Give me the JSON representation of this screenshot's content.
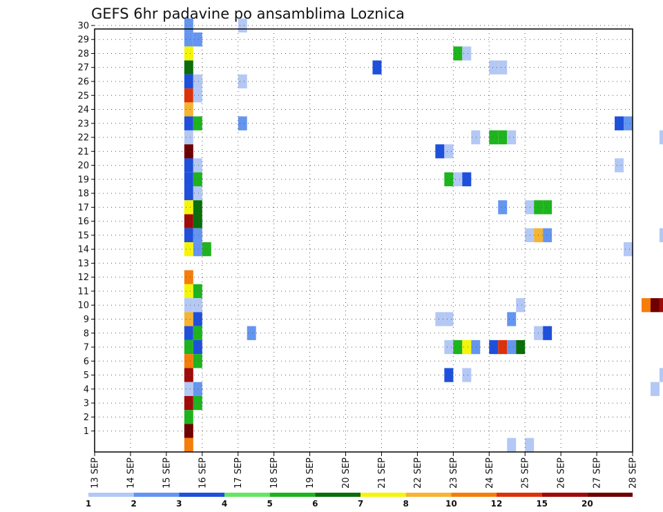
{
  "chart_data": {
    "type": "heatmap",
    "title": "GEFS 6hr padavine po ansamblima Loznica",
    "x_ticks": [
      "13 SEP",
      "14 SEP",
      "15 SEP",
      "16 SEP",
      "17 SEP",
      "18 SEP",
      "19 SEP",
      "20 SEP",
      "21 SEP",
      "22 SEP",
      "23 SEP",
      "24 SEP",
      "25 SEP",
      "26 SEP",
      "27 SEP",
      "28 SEP"
    ],
    "y_ticks": [
      "1",
      "2",
      "3",
      "4",
      "5",
      "6",
      "7",
      "8",
      "9",
      "10",
      "11",
      "12",
      "13",
      "14",
      "15",
      "16",
      "17",
      "18",
      "19",
      "20",
      "21",
      "22",
      "23",
      "24",
      "25",
      "26",
      "27",
      "28",
      "29",
      "30"
    ],
    "grid": true,
    "colorbar": {
      "labels": [
        "1",
        "2",
        "3",
        "4",
        "5",
        "6",
        "7",
        "8",
        "10",
        "12",
        "15",
        "20"
      ],
      "colors": [
        "#b4c8f5",
        "#6496f0",
        "#1e50dc",
        "#64e664",
        "#1eb41e",
        "#0a6e0a",
        "#f5f50a",
        "#f5b432",
        "#f57d0a",
        "#dc320a",
        "#a00a0a",
        "#6e0000"
      ]
    },
    "cells": [
      {
        "m": 30,
        "t": 15.5,
        "v": 2
      },
      {
        "m": 30,
        "t": 17.0,
        "v": 1
      },
      {
        "m": 29,
        "t": 15.5,
        "v": 2
      },
      {
        "m": 29,
        "t": 15.75,
        "v": 2
      },
      {
        "m": 28,
        "t": 15.5,
        "v": 7
      },
      {
        "m": 28,
        "t": 23.0,
        "v": 5
      },
      {
        "m": 28,
        "t": 23.25,
        "v": 1
      },
      {
        "m": 27,
        "t": 15.5,
        "v": 6
      },
      {
        "m": 27,
        "t": 20.75,
        "v": 3
      },
      {
        "m": 27,
        "t": 24.0,
        "v": 1
      },
      {
        "m": 27,
        "t": 24.25,
        "v": 1
      },
      {
        "m": 26,
        "t": 15.5,
        "v": 3
      },
      {
        "m": 26,
        "t": 15.75,
        "v": 1
      },
      {
        "m": 26,
        "t": 17.0,
        "v": 1
      },
      {
        "m": 25,
        "t": 15.5,
        "v": 12
      },
      {
        "m": 25,
        "t": 15.75,
        "v": 1
      },
      {
        "m": 24,
        "t": 15.5,
        "v": 8
      },
      {
        "m": 23,
        "t": 15.5,
        "v": 3
      },
      {
        "m": 23,
        "t": 15.75,
        "v": 5
      },
      {
        "m": 23,
        "t": 17.0,
        "v": 2
      },
      {
        "m": 23,
        "t": 27.5,
        "v": 3
      },
      {
        "m": 23,
        "t": 27.75,
        "v": 2
      },
      {
        "m": 22,
        "t": 15.5,
        "v": 1
      },
      {
        "m": 22,
        "t": 23.5,
        "v": 1
      },
      {
        "m": 22,
        "t": 24.0,
        "v": 5
      },
      {
        "m": 22,
        "t": 24.25,
        "v": 5
      },
      {
        "m": 22,
        "t": 24.5,
        "v": 1
      },
      {
        "m": 22,
        "t": 28.75,
        "v": 1
      },
      {
        "m": 21,
        "t": 15.5,
        "v": 20
      },
      {
        "m": 21,
        "t": 22.5,
        "v": 3
      },
      {
        "m": 21,
        "t": 22.75,
        "v": 1
      },
      {
        "m": 20,
        "t": 15.5,
        "v": 3
      },
      {
        "m": 20,
        "t": 15.75,
        "v": 1
      },
      {
        "m": 20,
        "t": 27.5,
        "v": 1
      },
      {
        "m": 19,
        "t": 15.5,
        "v": 3
      },
      {
        "m": 19,
        "t": 15.75,
        "v": 5
      },
      {
        "m": 19,
        "t": 22.75,
        "v": 5
      },
      {
        "m": 19,
        "t": 23.0,
        "v": 1
      },
      {
        "m": 19,
        "t": 23.25,
        "v": 3
      },
      {
        "m": 18,
        "t": 15.5,
        "v": 3
      },
      {
        "m": 18,
        "t": 15.75,
        "v": 1
      },
      {
        "m": 17,
        "t": 15.5,
        "v": 7
      },
      {
        "m": 17,
        "t": 15.75,
        "v": 6
      },
      {
        "m": 17,
        "t": 24.25,
        "v": 2
      },
      {
        "m": 17,
        "t": 25.0,
        "v": 1
      },
      {
        "m": 17,
        "t": 25.25,
        "v": 5
      },
      {
        "m": 17,
        "t": 25.5,
        "v": 5
      },
      {
        "m": 16,
        "t": 15.5,
        "v": 15
      },
      {
        "m": 16,
        "t": 15.75,
        "v": 6
      },
      {
        "m": 15,
        "t": 15.5,
        "v": 3
      },
      {
        "m": 15,
        "t": 15.75,
        "v": 2
      },
      {
        "m": 15,
        "t": 25.0,
        "v": 1
      },
      {
        "m": 15,
        "t": 25.25,
        "v": 8
      },
      {
        "m": 15,
        "t": 25.5,
        "v": 2
      },
      {
        "m": 15,
        "t": 28.75,
        "v": 1
      },
      {
        "m": 14,
        "t": 15.5,
        "v": 7
      },
      {
        "m": 14,
        "t": 15.75,
        "v": 2
      },
      {
        "m": 14,
        "t": 16.0,
        "v": 5
      },
      {
        "m": 14,
        "t": 27.75,
        "v": 1
      },
      {
        "m": 12,
        "t": 15.5,
        "v": 10
      },
      {
        "m": 11,
        "t": 15.5,
        "v": 7
      },
      {
        "m": 11,
        "t": 15.75,
        "v": 5
      },
      {
        "m": 10,
        "t": 15.5,
        "v": 1
      },
      {
        "m": 10,
        "t": 15.75,
        "v": 1
      },
      {
        "m": 10,
        "t": 24.75,
        "v": 1
      },
      {
        "m": 10,
        "t": 28.25,
        "v": 10
      },
      {
        "m": 10,
        "t": 28.5,
        "v": 20
      },
      {
        "m": 10,
        "t": 28.75,
        "v": 15
      },
      {
        "m": 9,
        "t": 15.5,
        "v": 8
      },
      {
        "m": 9,
        "t": 15.75,
        "v": 3
      },
      {
        "m": 9,
        "t": 22.5,
        "v": 1
      },
      {
        "m": 9,
        "t": 22.75,
        "v": 1
      },
      {
        "m": 9,
        "t": 24.5,
        "v": 2
      },
      {
        "m": 8,
        "t": 15.5,
        "v": 3
      },
      {
        "m": 8,
        "t": 15.75,
        "v": 5
      },
      {
        "m": 8,
        "t": 17.25,
        "v": 2
      },
      {
        "m": 8,
        "t": 25.25,
        "v": 1
      },
      {
        "m": 8,
        "t": 25.5,
        "v": 3
      },
      {
        "m": 7,
        "t": 15.5,
        "v": 5
      },
      {
        "m": 7,
        "t": 15.75,
        "v": 3
      },
      {
        "m": 7,
        "t": 22.75,
        "v": 1
      },
      {
        "m": 7,
        "t": 23.0,
        "v": 5
      },
      {
        "m": 7,
        "t": 23.25,
        "v": 7
      },
      {
        "m": 7,
        "t": 23.5,
        "v": 2
      },
      {
        "m": 7,
        "t": 24.0,
        "v": 3
      },
      {
        "m": 7,
        "t": 24.25,
        "v": 12
      },
      {
        "m": 7,
        "t": 24.5,
        "v": 2
      },
      {
        "m": 7,
        "t": 24.75,
        "v": 6
      },
      {
        "m": 6,
        "t": 15.5,
        "v": 10
      },
      {
        "m": 6,
        "t": 15.75,
        "v": 5
      },
      {
        "m": 5,
        "t": 15.5,
        "v": 15
      },
      {
        "m": 5,
        "t": 22.75,
        "v": 3
      },
      {
        "m": 5,
        "t": 23.25,
        "v": 1
      },
      {
        "m": 5,
        "t": 28.75,
        "v": 1
      },
      {
        "m": 4,
        "t": 15.5,
        "v": 1
      },
      {
        "m": 4,
        "t": 15.75,
        "v": 2
      },
      {
        "m": 4,
        "t": 28.5,
        "v": 1
      },
      {
        "m": 3,
        "t": 15.5,
        "v": 15
      },
      {
        "m": 3,
        "t": 15.75,
        "v": 5
      },
      {
        "m": 2,
        "t": 15.5,
        "v": 5
      },
      {
        "m": 1,
        "t": 15.5,
        "v": 20
      },
      {
        "m": 0,
        "t": 15.5,
        "v": 10
      },
      {
        "m": 0,
        "t": 24.5,
        "v": 1
      },
      {
        "m": 0,
        "t": 25.0,
        "v": 1
      }
    ]
  }
}
